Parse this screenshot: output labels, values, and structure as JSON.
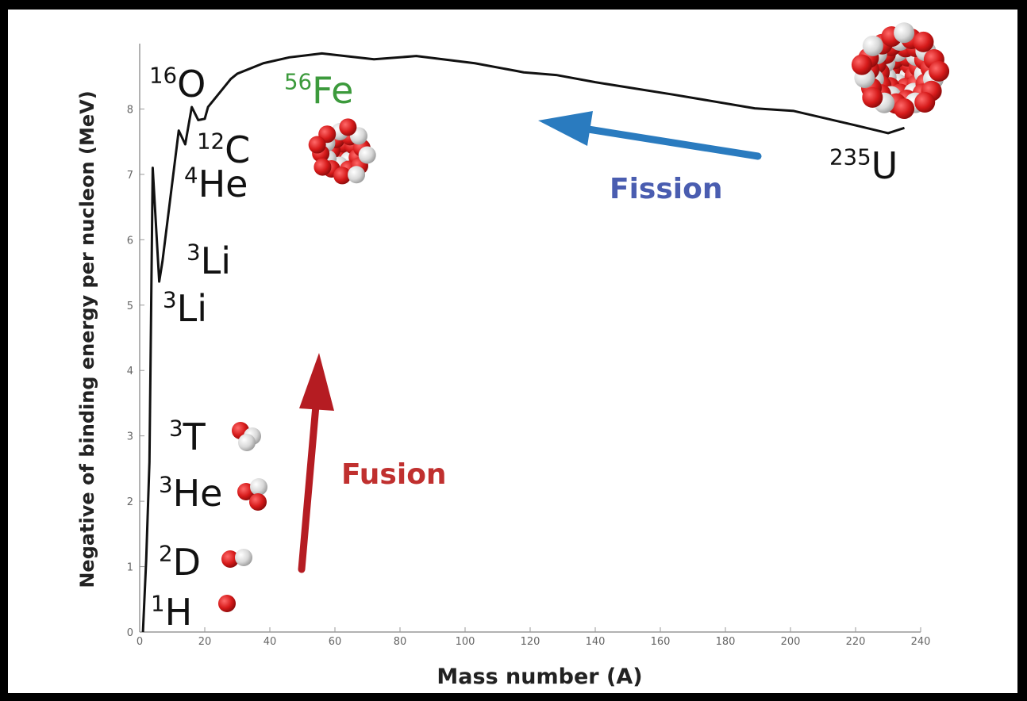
{
  "chart_data": {
    "type": "line",
    "x_label": "Mass number (A)",
    "y_label": "Negative of binding energy per nucleon (MeV)",
    "x": [
      1,
      2,
      3,
      4,
      6,
      7,
      12,
      14,
      16,
      18,
      20,
      21,
      28,
      30,
      38,
      46,
      56,
      72,
      85,
      103,
      116,
      118,
      128,
      140,
      164,
      189,
      201,
      220,
      230,
      235
    ],
    "series": [
      {
        "color": "#111111",
        "values": [
          0,
          1.1,
          2.6,
          7.1,
          5.36,
          5.67,
          7.67,
          7.46,
          8.03,
          7.83,
          7.85,
          8.03,
          8.46,
          8.54,
          8.7,
          8.79,
          8.85,
          8.76,
          8.81,
          8.7,
          8.58,
          8.56,
          8.52,
          8.41,
          8.22,
          8.01,
          7.97,
          7.75,
          7.63,
          7.71
        ]
      }
    ],
    "xlim": [
      0,
      240
    ],
    "ylim": [
      0,
      9
    ],
    "xticks": [
      0,
      20,
      40,
      60,
      80,
      100,
      120,
      140,
      160,
      180,
      200,
      220,
      240
    ],
    "yticks": [
      0,
      1,
      2,
      3,
      4,
      5,
      6,
      7,
      8
    ],
    "annotations": [
      {
        "sup": "16",
        "text": "O",
        "color": "#111111"
      },
      {
        "sup": "56",
        "text": "Fe",
        "color": "#3c9a3c"
      },
      {
        "sup": "12",
        "text": "C",
        "color": "#111111"
      },
      {
        "sup": "4",
        "text": "He",
        "color": "#111111"
      },
      {
        "sup": "3",
        "text": "Li",
        "color": "#111111"
      },
      {
        "sup": "3",
        "text": "Li",
        "color": "#111111"
      },
      {
        "sup": "3",
        "text": "T",
        "color": "#111111"
      },
      {
        "sup": "3",
        "text": "He",
        "color": "#111111"
      },
      {
        "sup": "2",
        "text": "D",
        "color": "#111111"
      },
      {
        "sup": "1",
        "text": "H",
        "color": "#111111"
      },
      {
        "sup": "235",
        "text": "U",
        "color": "#111111"
      },
      {
        "text": "Fission",
        "color": "#4a5db0"
      },
      {
        "text": "Fusion",
        "color": "#c0302f"
      }
    ]
  }
}
